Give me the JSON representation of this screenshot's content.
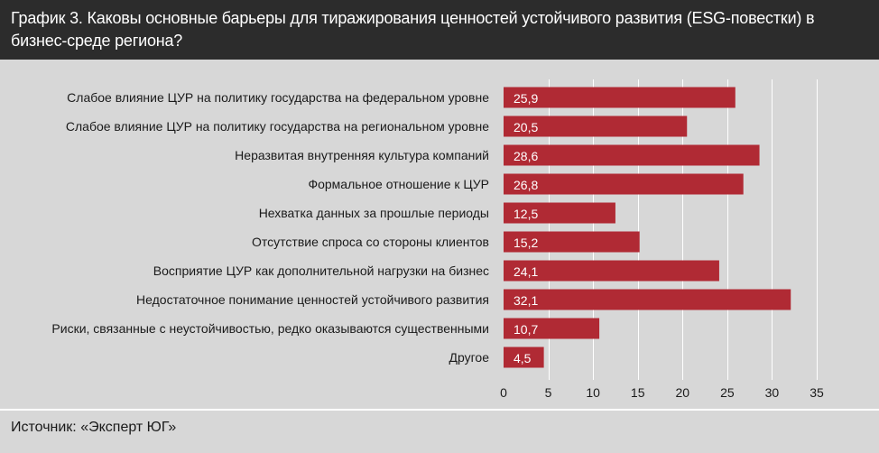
{
  "title": "График 3. Каковы основные барьеры для тиражирования ценностей устойчивого развития (ESG-повестки) в бизнес-среде региона?",
  "source": "Источник: «Эксперт ЮГ»",
  "colors": {
    "bar": "#b02a34",
    "header_bg": "#2c2c2c",
    "plot_bg": "#d7d7d7",
    "grid": "#ffffff"
  },
  "chart_data": {
    "type": "bar",
    "orientation": "horizontal",
    "categories": [
      "Слабое влияние ЦУР на политику государства на федеральном уровне",
      "Слабое влияние ЦУР на политику государства на региональном уровне",
      "Неразвитая внутренняя культура компаний",
      "Формальное отношение к ЦУР",
      "Нехватка данных за прошлые периоды",
      "Отсутствие спроса со стороны клиентов",
      "Восприятие ЦУР как дополнительной нагрузки на бизнес",
      "Недостаточное понимание ценностей устойчивого развития",
      "Риски, связанные с неустойчивостью, редко оказываются существенными",
      "Другое"
    ],
    "values": [
      25.9,
      20.5,
      28.6,
      26.8,
      12.5,
      15.2,
      24.1,
      32.1,
      10.7,
      4.5
    ],
    "value_labels": [
      "25,9",
      "20,5",
      "28,6",
      "26,8",
      "12,5",
      "15,2",
      "24,1",
      "32,1",
      "10,7",
      "4,5"
    ],
    "xlim": [
      0,
      35
    ],
    "xticks": [
      0,
      5,
      10,
      15,
      20,
      25,
      30,
      35
    ],
    "xlabel": "",
    "ylabel": "",
    "grid": "vertical"
  }
}
